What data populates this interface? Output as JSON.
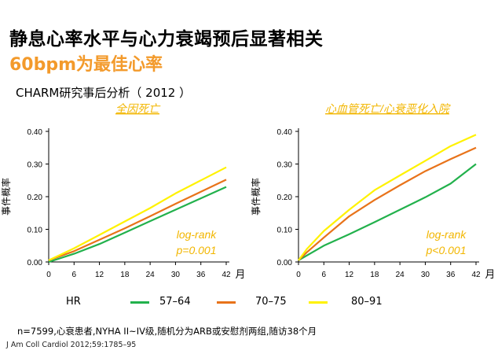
{
  "header": {
    "title": "静息心率水平与心力衰竭预后显著相关",
    "subtitle": "60bpm为最佳心率",
    "study": "CHARM研究事后分析（ 2012 ）"
  },
  "colors": {
    "green": "#22B14C",
    "orange": "#E8731A",
    "yellow": "#FFF200",
    "title_accent": "#F39A2B",
    "annotation": "#F2B600"
  },
  "legend": {
    "title": "HR",
    "items": [
      {
        "label": "57–64",
        "color": "#22B14C"
      },
      {
        "label": "70–75",
        "color": "#E8731A"
      },
      {
        "label": "80–91",
        "color": "#FFF200"
      }
    ]
  },
  "chart_data": [
    {
      "type": "line",
      "title": "全因死亡",
      "xlabel": "月",
      "ylabel": "事件概率",
      "x_ticks": [
        "0",
        "6",
        "12",
        "18",
        "24",
        "30",
        "36",
        "42"
      ],
      "y_ticks": [
        "0.00",
        "0.10",
        "0.20",
        "0.30",
        "0.40"
      ],
      "xlim": [
        0,
        42
      ],
      "ylim": [
        0,
        0.4
      ],
      "annotation": [
        "log-rank",
        "p=0.001"
      ],
      "series": [
        {
          "name": "57–64",
          "color": "#22B14C",
          "x": [
            0,
            6,
            12,
            18,
            24,
            30,
            36,
            42
          ],
          "y": [
            0.0,
            0.025,
            0.055,
            0.09,
            0.125,
            0.16,
            0.195,
            0.23
          ]
        },
        {
          "name": "70–75",
          "color": "#E8731A",
          "x": [
            0,
            6,
            12,
            18,
            24,
            30,
            36,
            42
          ],
          "y": [
            0.005,
            0.033,
            0.068,
            0.103,
            0.14,
            0.178,
            0.215,
            0.252
          ]
        },
        {
          "name": "80–91",
          "color": "#FFF200",
          "x": [
            0,
            6,
            12,
            18,
            24,
            30,
            36,
            42
          ],
          "y": [
            0.005,
            0.042,
            0.083,
            0.124,
            0.165,
            0.21,
            0.25,
            0.29
          ]
        }
      ]
    },
    {
      "type": "line",
      "title": "心血管死亡/心衰恶化入院",
      "xlabel": "月",
      "ylabel": "事件概率",
      "x_ticks": [
        "0",
        "6",
        "12",
        "18",
        "24",
        "30",
        "36",
        "42"
      ],
      "y_ticks": [
        "0.00",
        "0.10",
        "0.20",
        "0.30",
        "0.40"
      ],
      "xlim": [
        0,
        42
      ],
      "ylim": [
        0,
        0.4
      ],
      "annotation": [
        "log-rank",
        "p<0.001"
      ],
      "series": [
        {
          "name": "57–64",
          "color": "#22B14C",
          "x": [
            0,
            2,
            6,
            12,
            18,
            24,
            30,
            36,
            42
          ],
          "y": [
            0.005,
            0.02,
            0.05,
            0.085,
            0.122,
            0.16,
            0.198,
            0.24,
            0.3
          ]
        },
        {
          "name": "70–75",
          "color": "#E8731A",
          "x": [
            0,
            2,
            6,
            12,
            18,
            24,
            30,
            36,
            42
          ],
          "y": [
            0.005,
            0.03,
            0.075,
            0.14,
            0.19,
            0.235,
            0.278,
            0.315,
            0.35
          ]
        },
        {
          "name": "80–91",
          "color": "#FFF200",
          "x": [
            0,
            2,
            6,
            12,
            18,
            24,
            30,
            36,
            42
          ],
          "y": [
            0.005,
            0.04,
            0.095,
            0.16,
            0.22,
            0.265,
            0.31,
            0.355,
            0.39
          ]
        }
      ]
    }
  ],
  "footnote": "n=7599,心衰患者,NYHA II~IV级,随机分为ARB或安慰剂两组,随访38个月",
  "reference": "J Am Coll Cardiol 2012;59:1785–95"
}
